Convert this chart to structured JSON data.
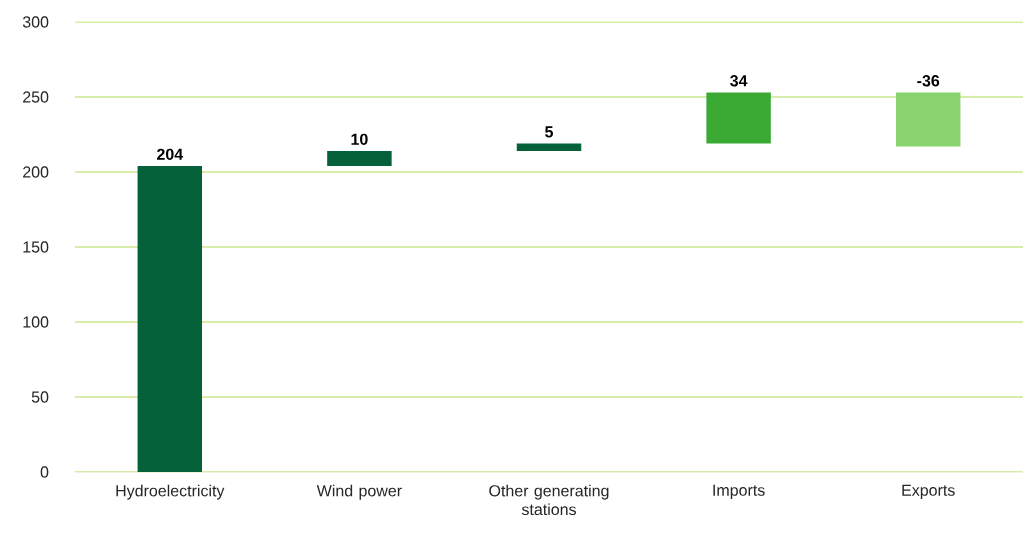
{
  "chart_data": {
    "type": "bar",
    "categories": [
      "Hydroelectricity",
      "Wind power",
      "Other generating stations",
      "Imports",
      "Exports"
    ],
    "values": [
      204,
      10,
      5,
      34,
      -36
    ],
    "base": [
      0,
      204,
      214,
      219,
      253
    ],
    "colors": [
      "#05613a",
      "#05613a",
      "#05613a",
      "#3aaa35",
      "#88d36d"
    ],
    "ylim": [
      0,
      300
    ],
    "yticks": [
      0,
      50,
      100,
      150,
      200,
      250,
      300
    ],
    "grid": "y",
    "data_labels": true
  }
}
